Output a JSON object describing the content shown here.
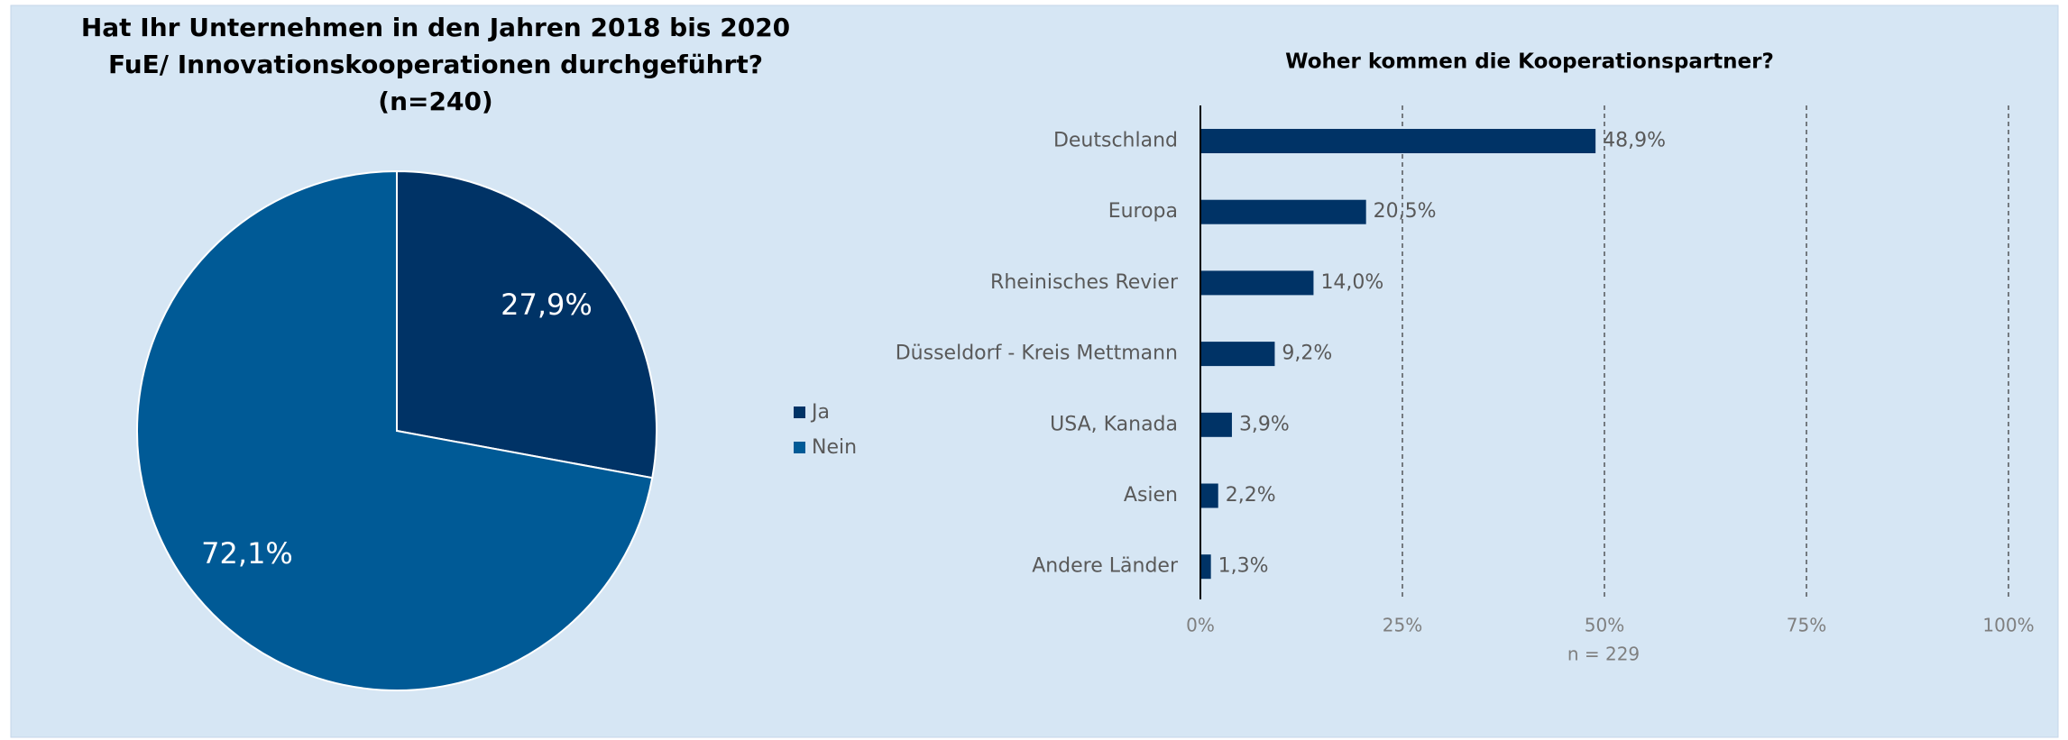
{
  "chart_data": [
    {
      "type": "pie",
      "title": [
        "Hat Ihr Unternehmen in den Jahren 2018 bis 2020",
        "FuE/ Innovationskooperationen durchgeführt?",
        "(n=240)"
      ],
      "categories": [
        "Ja",
        "Nein"
      ],
      "values": [
        27.9,
        72.1
      ],
      "value_labels": [
        "27,9%",
        "72,1%"
      ],
      "colors": [
        "#003366",
        "#005a96"
      ],
      "legend": "right"
    },
    {
      "type": "hbar",
      "title": "Woher kommen die Kooperationspartner?",
      "categories": [
        "Deutschland",
        "Europa",
        "Rheinisches Revier",
        "Düsseldorf - Kreis Mettmann",
        "USA, Kanada",
        "Asien",
        "Andere Länder"
      ],
      "values": [
        48.9,
        20.5,
        14.0,
        9.2,
        3.9,
        2.2,
        1.3
      ],
      "value_labels": [
        "48,9%",
        "20,5%",
        "14,0%",
        "9,2%",
        "3,9%",
        "2,2%",
        "1,3%"
      ],
      "color": "#003366",
      "xlim": [
        0,
        100
      ],
      "xticks": [
        {
          "value": 0,
          "label": "0%"
        },
        {
          "value": 25,
          "label": "25%"
        },
        {
          "value": 50,
          "label": "50%"
        },
        {
          "value": 75,
          "label": "75%"
        },
        {
          "value": 100,
          "label": "100%"
        }
      ],
      "grid": true,
      "annotation": "n = 229"
    }
  ]
}
